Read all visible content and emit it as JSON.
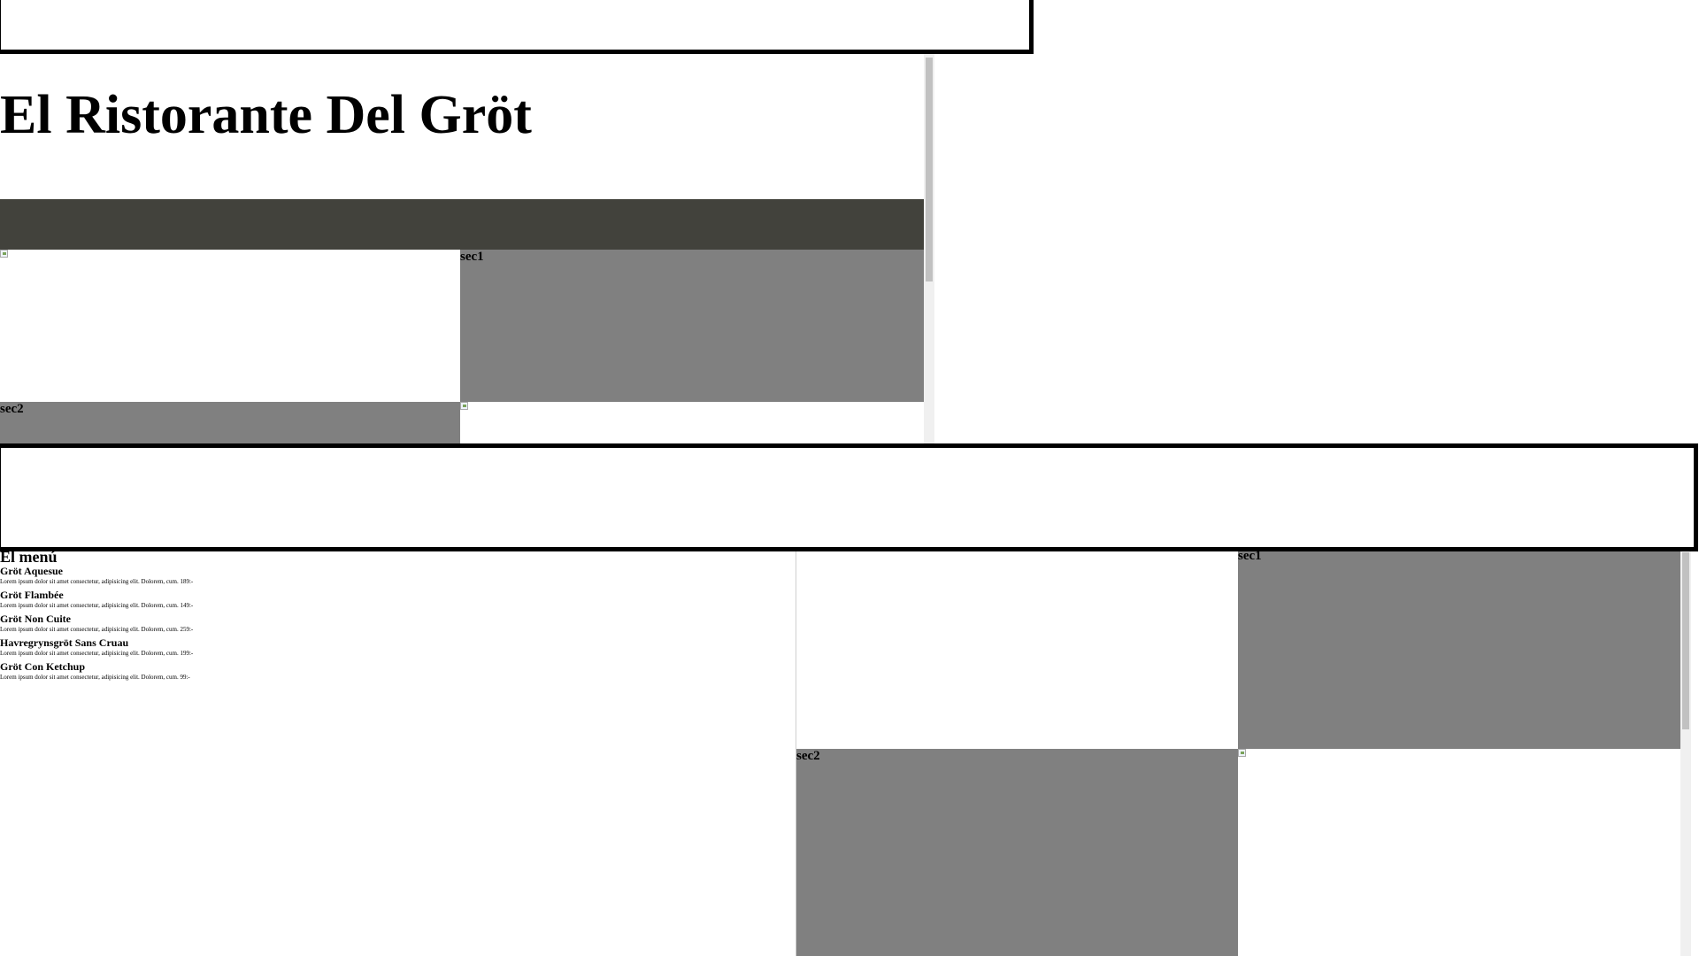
{
  "site": {
    "title": "El Ristorante Del Gröt"
  },
  "sections": [
    {
      "label": "sec1",
      "image_alt": ""
    },
    {
      "label": "sec2",
      "image_alt": ""
    }
  ],
  "menu": {
    "heading": "El menú",
    "items": [
      {
        "name": "Gröt Aquesue",
        "desc": "Lorem ipsum dolor sit amet consectetur, adipisicing elit. Dolorem, cum. 189:-"
      },
      {
        "name": "Gröt Flambée",
        "desc": "Lorem ipsum dolor sit amet consectetur, adipisicing elit. Dolorem, cum. 149:-"
      },
      {
        "name": "Gröt Non Cuite",
        "desc": "Lorem ipsum dolor sit amet consectetur, adipisicing elit. Dolorem, cum. 259:-"
      },
      {
        "name": "Havregrynsgröt Sans Cruau",
        "desc": "Lorem ipsum dolor sit amet consectetur, adipisicing elit. Dolorem, cum. 199:-"
      },
      {
        "name": "Gröt Con Ketchup",
        "desc": "Lorem ipsum dolor sit amet consectetur, adipisicing elit. Dolorem, cum. 99:-"
      }
    ]
  },
  "colors": {
    "navbar": "#42423c",
    "section_bg": "#808080",
    "frame_border": "#000000",
    "page_bg": "#ffffff"
  }
}
